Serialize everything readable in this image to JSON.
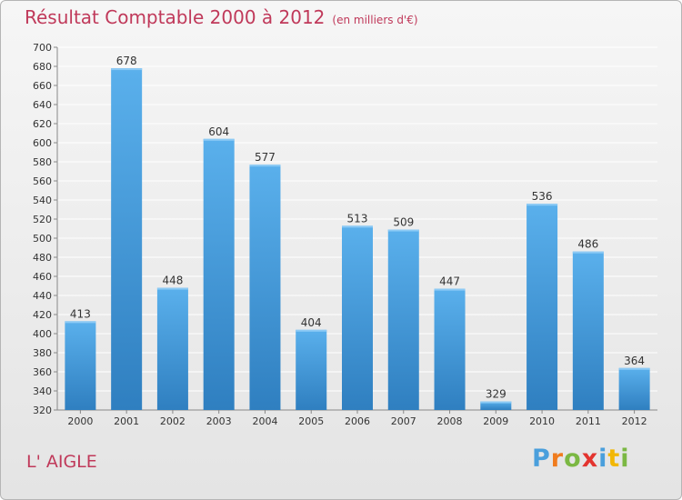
{
  "title": "Résultat Comptable 2000 à 2012",
  "unit": "(en milliers d'€)",
  "commune": "L' AIGLE",
  "logo": {
    "text": "Proxiti",
    "letters": [
      {
        "char": "P",
        "color": "#4a9fdc"
      },
      {
        "char": "r",
        "color": "#f07c1e"
      },
      {
        "char": "o",
        "color": "#7bb843"
      },
      {
        "char": "x",
        "color": "#e3342f"
      },
      {
        "char": "i",
        "color": "#4a9fdc"
      },
      {
        "char": "t",
        "color": "#f2b705"
      },
      {
        "char": "i",
        "color": "#7bb843"
      }
    ]
  },
  "colors": {
    "bar_light": "#5ab0ec",
    "bar_dark": "#2f7fc0",
    "title": "#c0395a",
    "grid": "#ffffff",
    "axis_text": "#333333"
  },
  "chart_data": {
    "type": "bar",
    "categories": [
      "2000",
      "2001",
      "2002",
      "2003",
      "2004",
      "2005",
      "2006",
      "2007",
      "2008",
      "2009",
      "2010",
      "2011",
      "2012"
    ],
    "values": [
      413,
      678,
      448,
      604,
      577,
      404,
      513,
      509,
      447,
      329,
      536,
      486,
      364
    ],
    "ylim": [
      320,
      700
    ],
    "ytick_step": 20,
    "grid": true,
    "data_labels": true
  }
}
